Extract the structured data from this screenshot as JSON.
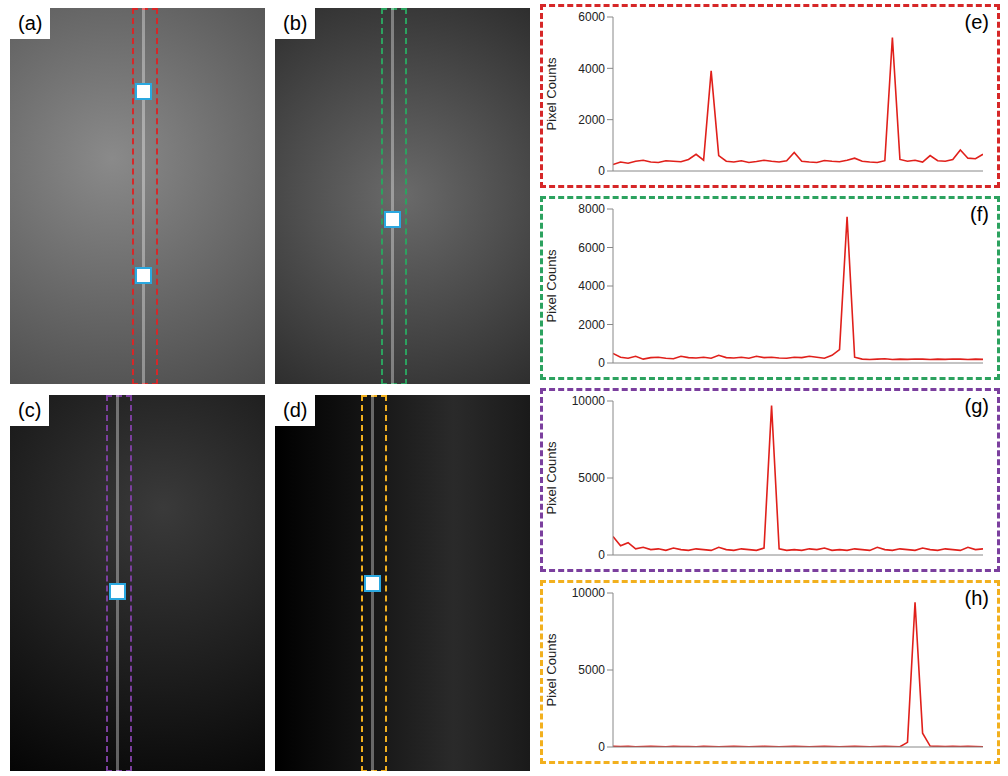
{
  "images": [
    {
      "label": "(a)"
    },
    {
      "label": "(b)"
    },
    {
      "label": "(c)"
    },
    {
      "label": "(d)"
    }
  ],
  "chart_data": [
    {
      "type": "line",
      "title": "(e)",
      "y_label": "Pixel Counts",
      "color": "#e0201b",
      "tick_labels": "y",
      "x": [
        0,
        1,
        2,
        3,
        4,
        5,
        6,
        7,
        8,
        9,
        10,
        11,
        12,
        13,
        14,
        15,
        16,
        17,
        18,
        19,
        20,
        21,
        22,
        23,
        24,
        25,
        26,
        27,
        28,
        29,
        30,
        31,
        32,
        33,
        34,
        35,
        36,
        37,
        38,
        39,
        40,
        41,
        42,
        43,
        44,
        45,
        46,
        47,
        48,
        49
      ],
      "values": [
        250,
        350,
        300,
        380,
        420,
        350,
        330,
        400,
        380,
        360,
        450,
        650,
        420,
        3900,
        600,
        380,
        350,
        400,
        330,
        370,
        420,
        380,
        350,
        400,
        720,
        380,
        350,
        330,
        410,
        380,
        360,
        420,
        500,
        380,
        350,
        330,
        400,
        5200,
        450,
        380,
        420,
        350,
        600,
        400,
        380,
        450,
        820,
        500,
        480,
        650
      ],
      "xlim": [
        0,
        49
      ],
      "ylim": [
        0,
        6000
      ],
      "yticks": [
        0,
        2000,
        4000,
        6000
      ]
    },
    {
      "type": "line",
      "title": "(f)",
      "y_label": "Pixel Counts",
      "color": "#e0201b",
      "tick_labels": "y",
      "x": [
        0,
        1,
        2,
        3,
        4,
        5,
        6,
        7,
        8,
        9,
        10,
        11,
        12,
        13,
        14,
        15,
        16,
        17,
        18,
        19,
        20,
        21,
        22,
        23,
        24,
        25,
        26,
        27,
        28,
        29,
        30,
        31,
        32,
        33,
        34,
        35,
        36,
        37,
        38,
        39,
        40,
        41,
        42,
        43,
        44,
        45,
        46,
        47,
        48,
        49
      ],
      "values": [
        500,
        300,
        250,
        350,
        200,
        280,
        300,
        250,
        220,
        350,
        280,
        260,
        300,
        250,
        400,
        280,
        260,
        300,
        250,
        350,
        280,
        300,
        260,
        250,
        300,
        280,
        350,
        300,
        250,
        400,
        700,
        7600,
        300,
        200,
        180,
        200,
        220,
        180,
        200,
        190,
        210,
        200,
        180,
        200,
        190,
        210,
        200,
        180,
        200,
        190
      ],
      "xlim": [
        0,
        49
      ],
      "ylim": [
        0,
        8000
      ],
      "yticks": [
        0,
        2000,
        4000,
        6000,
        8000
      ]
    },
    {
      "type": "line",
      "title": "(g)",
      "y_label": "Pixel Counts",
      "color": "#e0201b",
      "tick_labels": "y",
      "x": [
        0,
        1,
        2,
        3,
        4,
        5,
        6,
        7,
        8,
        9,
        10,
        11,
        12,
        13,
        14,
        15,
        16,
        17,
        18,
        19,
        20,
        21,
        22,
        23,
        24,
        25,
        26,
        27,
        28,
        29,
        30,
        31,
        32,
        33,
        34,
        35,
        36,
        37,
        38,
        39,
        40,
        41,
        42,
        43,
        44,
        45,
        46,
        47,
        48,
        49
      ],
      "values": [
        1200,
        600,
        800,
        400,
        500,
        350,
        400,
        300,
        450,
        350,
        300,
        400,
        350,
        300,
        500,
        350,
        300,
        400,
        350,
        300,
        450,
        9700,
        400,
        300,
        350,
        300,
        400,
        350,
        450,
        300,
        350,
        300,
        400,
        350,
        300,
        500,
        350,
        300,
        400,
        350,
        300,
        450,
        350,
        300,
        400,
        350,
        300,
        500,
        350,
        400
      ],
      "xlim": [
        0,
        49
      ],
      "ylim": [
        0,
        10000
      ],
      "yticks": [
        0,
        5000,
        10000
      ]
    },
    {
      "type": "line",
      "title": "(h)",
      "y_label": "Pixel Counts",
      "color": "#e0201b",
      "tick_labels": "y",
      "x": [
        0,
        1,
        2,
        3,
        4,
        5,
        6,
        7,
        8,
        9,
        10,
        11,
        12,
        13,
        14,
        15,
        16,
        17,
        18,
        19,
        20,
        21,
        22,
        23,
        24,
        25,
        26,
        27,
        28,
        29,
        30,
        31,
        32,
        33,
        34,
        35,
        36,
        37,
        38,
        39,
        40,
        41,
        42,
        43,
        44,
        45,
        46,
        47,
        48,
        49
      ],
      "values": [
        50,
        30,
        40,
        20,
        30,
        40,
        30,
        20,
        40,
        30,
        30,
        20,
        40,
        30,
        20,
        30,
        40,
        30,
        20,
        30,
        40,
        30,
        20,
        30,
        40,
        30,
        20,
        30,
        40,
        30,
        20,
        30,
        40,
        30,
        20,
        30,
        40,
        30,
        20,
        300,
        9400,
        900,
        60,
        40,
        30,
        40,
        30,
        40,
        30,
        20
      ],
      "xlim": [
        0,
        49
      ],
      "ylim": [
        0,
        10000
      ],
      "yticks": [
        0,
        5000,
        10000
      ]
    }
  ]
}
